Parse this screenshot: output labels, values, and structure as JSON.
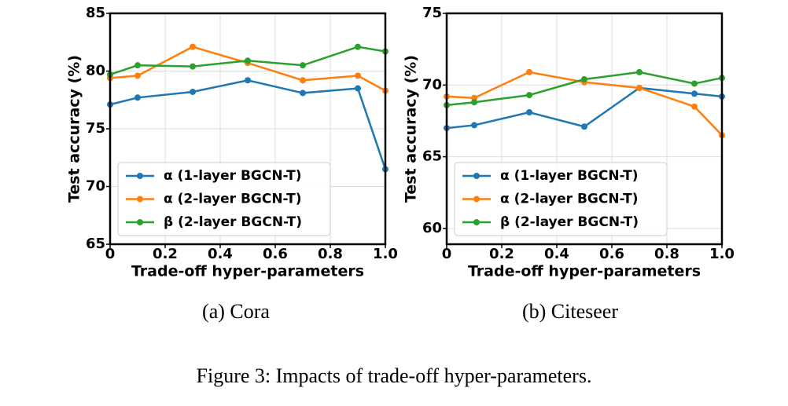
{
  "chart_data": [
    {
      "type": "line",
      "caption": "(a) Cora",
      "xlabel": "Trade-off hyper-parameters",
      "ylabel": "Test accuracy (%)",
      "x": [
        0,
        0.1,
        0.3,
        0.5,
        0.7,
        0.9,
        1.0
      ],
      "xlim": [
        0,
        1
      ],
      "xticks": [
        0,
        0.2,
        0.4,
        0.6,
        0.8,
        {
          "value": 1,
          "label": "1.0"
        }
      ],
      "ylim": [
        65,
        85
      ],
      "yticks": [
        65,
        70,
        75,
        80,
        85
      ],
      "grid": true,
      "legend": "lower left",
      "series": [
        {
          "name": "α (1-layer BGCN-T)",
          "color": "#1f77b4",
          "values": [
            77.1,
            77.7,
            78.2,
            79.2,
            78.1,
            78.5,
            71.5
          ]
        },
        {
          "name": "α (2-layer BGCN-T)",
          "color": "#ff7f0e",
          "values": [
            79.4,
            79.6,
            82.1,
            80.7,
            79.2,
            79.6,
            78.3
          ]
        },
        {
          "name": "β (2-layer BGCN-T)",
          "color": "#2ca02c",
          "values": [
            79.7,
            80.5,
            80.4,
            80.9,
            80.5,
            82.1,
            81.7
          ]
        }
      ]
    },
    {
      "type": "line",
      "caption": "(b) Citeseer",
      "xlabel": "Trade-off hyper-parameters",
      "ylabel": "Test accuracy (%)",
      "x": [
        0,
        0.1,
        0.3,
        0.5,
        0.7,
        0.9,
        1.0
      ],
      "xlim": [
        0,
        1
      ],
      "xticks": [
        0,
        0.2,
        0.4,
        0.6,
        0.8,
        {
          "value": 1,
          "label": "1.0"
        }
      ],
      "ylim": [
        58.9,
        75
      ],
      "yticks": [
        60,
        65,
        70,
        75
      ],
      "grid": true,
      "legend": "lower left",
      "series": [
        {
          "name": "α (1-layer BGCN-T)",
          "color": "#1f77b4",
          "values": [
            67.0,
            67.2,
            68.1,
            67.1,
            69.8,
            69.4,
            69.2
          ]
        },
        {
          "name": "α (2-layer BGCN-T)",
          "color": "#ff7f0e",
          "values": [
            69.2,
            69.1,
            70.9,
            70.2,
            69.8,
            68.5,
            66.5
          ]
        },
        {
          "name": "β (2-layer BGCN-T)",
          "color": "#2ca02c",
          "values": [
            68.6,
            68.8,
            69.3,
            70.4,
            70.9,
            70.1,
            70.5
          ]
        }
      ]
    }
  ],
  "caption": "Figure 3: Impacts of trade-off hyper-parameters."
}
